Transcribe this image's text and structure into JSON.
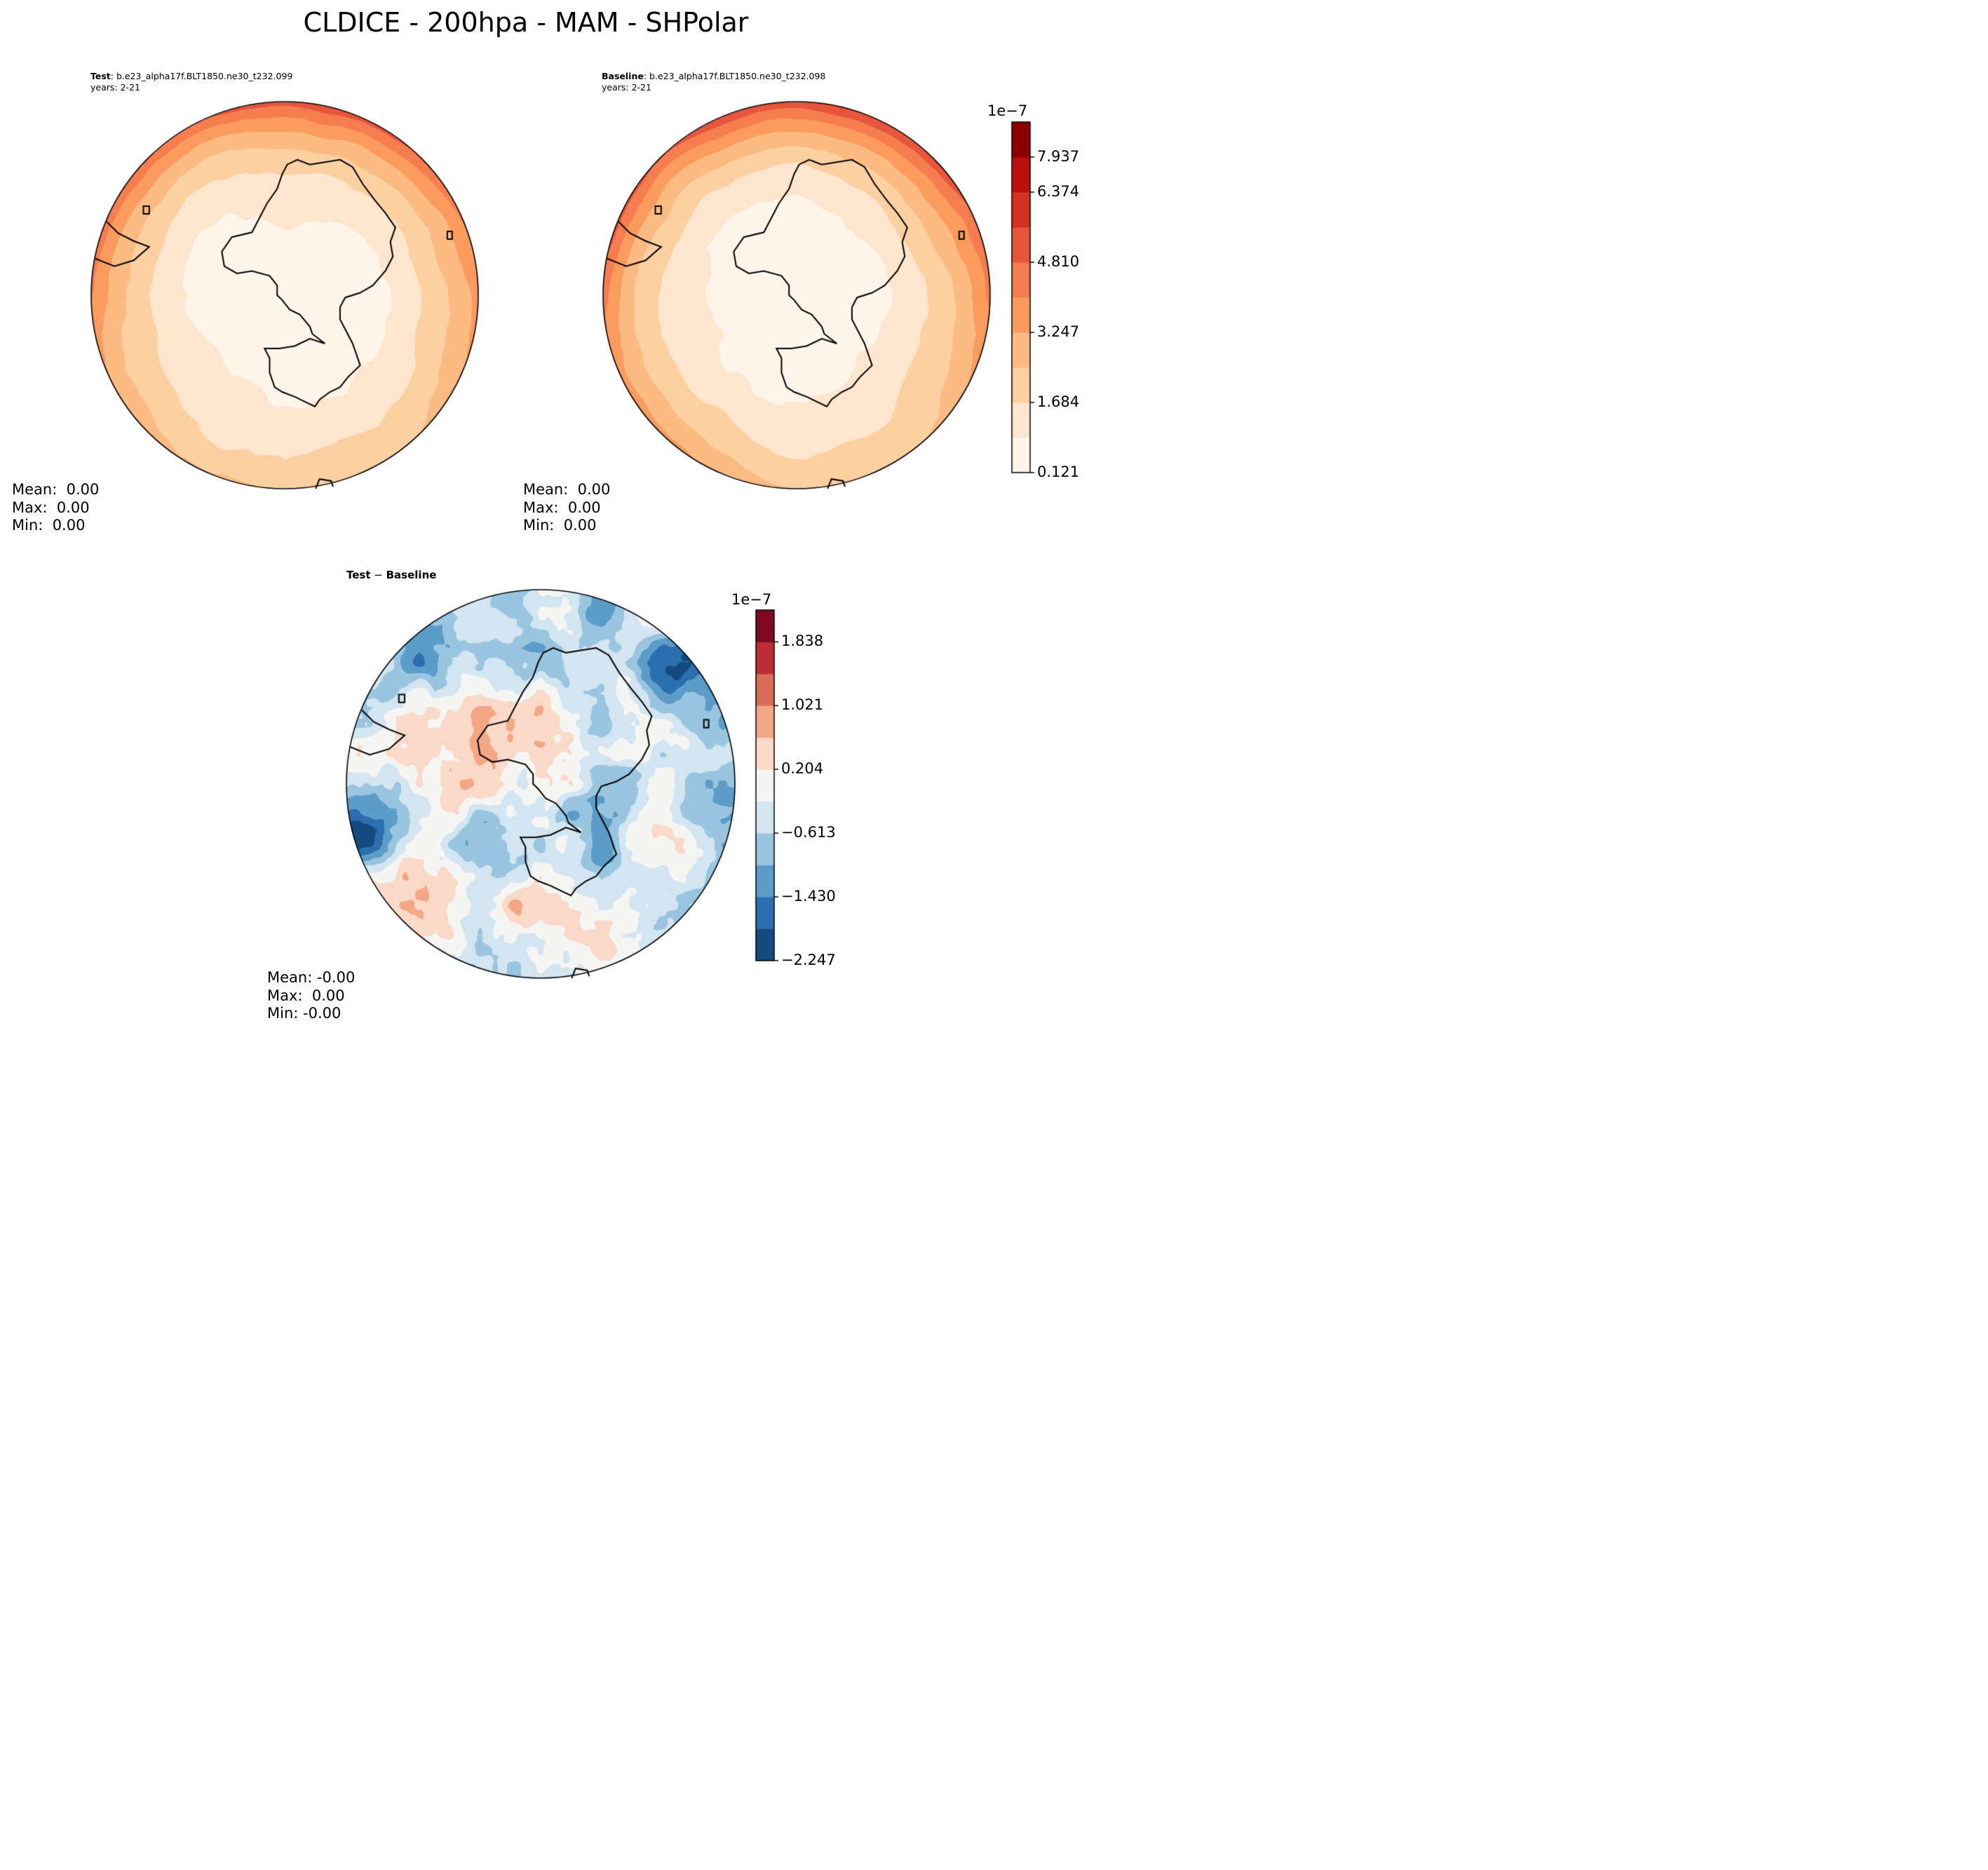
{
  "figure": {
    "title": "CLDICE - 200hpa - MAM - SHPolar"
  },
  "panels": {
    "test": {
      "label_bold": "Test",
      "label_rest": ": b.e23_alpha17f.BLT1850.ne30_t232.099",
      "years": "years: 2-21",
      "stats": {
        "mean": "Mean:  0.00",
        "max": "Max:  0.00",
        "min": "Min:  0.00"
      }
    },
    "baseline": {
      "label_bold": "Baseline",
      "label_rest": ": b.e23_alpha17f.BLT1850.ne30_t232.098",
      "years": "years: 2-21",
      "stats": {
        "mean": "Mean:  0.00",
        "max": "Max:  0.00",
        "min": "Min:  0.00"
      }
    },
    "diff": {
      "label_bold": "Test",
      "label_sep": " − ",
      "label_bold2": "Baseline",
      "stats": {
        "mean": "Mean: -0.00",
        "max": "Max:  0.00",
        "min": "Min: -0.00"
      }
    }
  },
  "colorbars": {
    "field": {
      "exponent": "1e−7",
      "tick_labels": [
        "0.121",
        "1.684",
        "3.247",
        "4.810",
        "6.374",
        "7.937"
      ],
      "colors": [
        "#fff5eb",
        "#fee6ce",
        "#fdd0a2",
        "#fdbb84",
        "#fc9b5e",
        "#f57d4f",
        "#e6553c",
        "#d33222",
        "#bd0f0f",
        "#8d0000"
      ]
    },
    "diff": {
      "exponent": "1e−7",
      "tick_labels": [
        "−2.247",
        "−1.430",
        "−0.613",
        "0.204",
        "1.021",
        "1.838"
      ],
      "colors": [
        "#134a80",
        "#2c6fb0",
        "#5b9cc9",
        "#99c5e0",
        "#d3e5f1",
        "#f5f5f4",
        "#fbd9c8",
        "#f4a784",
        "#da6c5a",
        "#bb2d33",
        "#7f0a22"
      ]
    }
  },
  "map_data": {
    "projection": "south-polar-stereographic",
    "region": "SHPolar",
    "field": "CLDICE",
    "level": "200hpa",
    "season": "MAM",
    "units_scale": "1e-7"
  }
}
